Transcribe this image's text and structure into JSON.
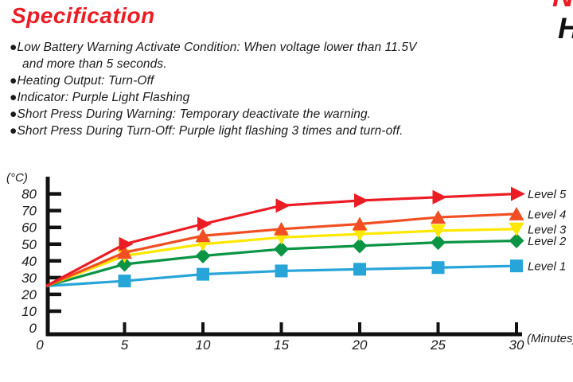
{
  "page": {
    "title": "Specification",
    "logo": {
      "top_fragment": "N",
      "bottom_fragment": "H"
    }
  },
  "spec_list": [
    {
      "bullet": "●",
      "text": "Low Battery Warning Activate Condition: When voltage lower than 11.5V"
    },
    {
      "bullet": "",
      "text": "and more than 5 seconds."
    },
    {
      "bullet": "●",
      "text": "Heating Output: Turn-Off"
    },
    {
      "bullet": "●",
      "text": "Indicator: Purple Light Flashing"
    },
    {
      "bullet": "●",
      "text": "Short Press During Warning: Temporary deactivate the warning."
    },
    {
      "bullet": "●",
      "text": "Short Press During Turn-Off: Purple light flashing 3 times and turn-off."
    }
  ],
  "chart_data": {
    "type": "line",
    "title": "",
    "xlabel": "(Minutes)",
    "ylabel": "(°C)",
    "x": [
      0,
      5,
      10,
      15,
      20,
      25,
      30
    ],
    "x_ticks": [
      0,
      5,
      10,
      15,
      20,
      25,
      30
    ],
    "y_ticks": [
      0,
      10,
      20,
      30,
      40,
      50,
      60,
      70,
      80
    ],
    "xlim": [
      0,
      30
    ],
    "ylim": [
      0,
      80
    ],
    "grid": false,
    "legend_position": "right of line ends",
    "series": [
      {
        "name": "Level 5",
        "color": "#ec1c24",
        "marker": "triangle-right",
        "values": [
          25,
          50,
          62,
          73,
          76,
          78,
          80
        ]
      },
      {
        "name": "Level 4",
        "color": "#f14f23",
        "marker": "triangle-up",
        "values": [
          25,
          45,
          55,
          59,
          62,
          66,
          68
        ]
      },
      {
        "name": "Level 3",
        "color": "#ffe800",
        "marker": "triangle-down",
        "values": [
          25,
          43,
          50,
          54,
          56,
          58,
          59
        ]
      },
      {
        "name": "Level 2",
        "color": "#0b9444",
        "marker": "diamond",
        "values": [
          25,
          38,
          43,
          47,
          49,
          51,
          52
        ]
      },
      {
        "name": "Level 1",
        "color": "#27a5d9",
        "marker": "square",
        "values": [
          25,
          28,
          32,
          34,
          35,
          36,
          37
        ]
      }
    ]
  }
}
